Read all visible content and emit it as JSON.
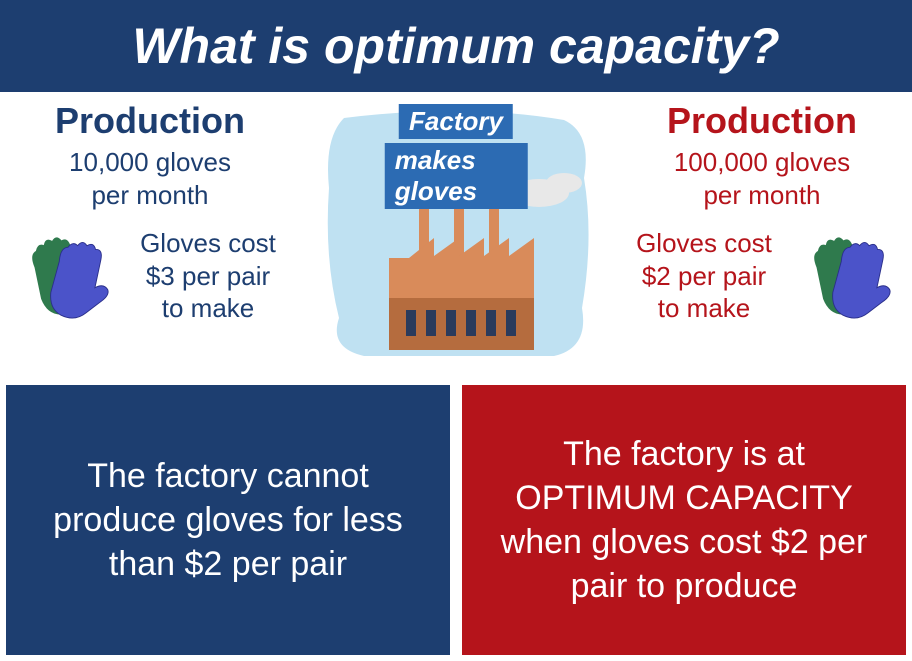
{
  "colors": {
    "navy": "#1d3e70",
    "crimson": "#b5141b",
    "title_text": "#ffffff",
    "sky": "#bfe1f2",
    "factory_orange": "#d98b5a",
    "factory_orange_dark": "#b56c3e",
    "factory_window": "#2a3b5c",
    "glove_blue": "#4b53c9",
    "glove_green": "#2f7a4d",
    "label_bg": "#2c6bb3",
    "label_text": "#ffffff",
    "smoke": "#e8e8e8"
  },
  "title": "What is optimum capacity?",
  "left": {
    "heading": "Production",
    "rate_line1": "10,000 gloves",
    "rate_line2": "per month",
    "cost_line1": "Gloves cost",
    "cost_line2": "$3 per pair",
    "cost_line3": "to make"
  },
  "right": {
    "heading": "Production",
    "rate_line1": "100,000 gloves",
    "rate_line2": "per month",
    "cost_line1": "Gloves cost",
    "cost_line2": "$2 per pair",
    "cost_line3": "to make"
  },
  "factory_label": {
    "line1": "Factory",
    "line2": "makes gloves"
  },
  "bottom_left": "The factory cannot produce gloves for less than $2 per pair",
  "bottom_right": "The factory is at OPTIMUM CAPACITY when gloves cost $2 per pair to produce",
  "fonts": {
    "title_size": 50,
    "heading_size": 36,
    "body_size": 26,
    "bottom_size": 34
  }
}
